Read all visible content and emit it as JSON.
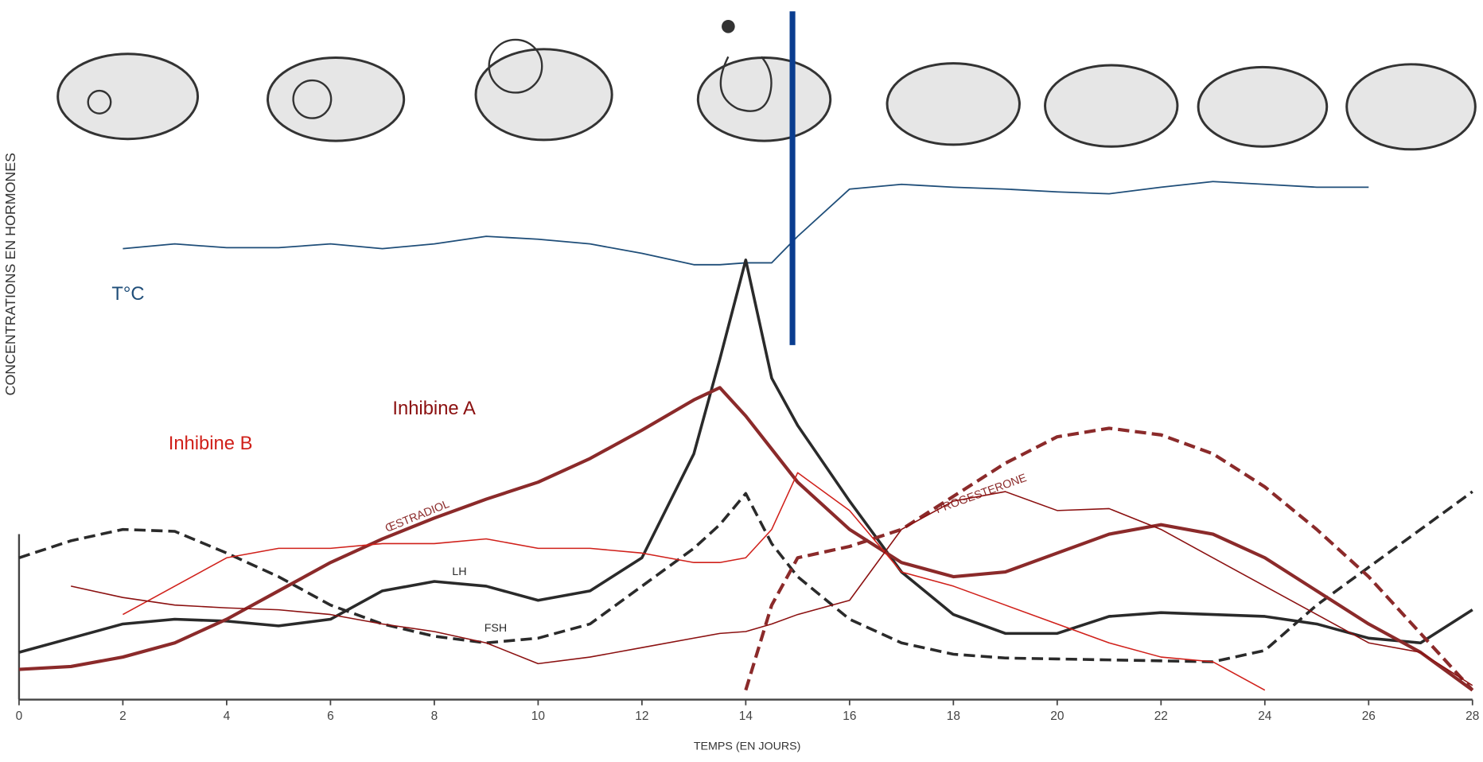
{
  "chart_data": {
    "type": "line",
    "y_label": "CONCENTRATIONS EN HORMONES",
    "x_label": "TEMPS (EN JOURS)",
    "x": [
      0,
      1,
      2,
      3,
      4,
      5,
      6,
      7,
      8,
      9,
      10,
      11,
      12,
      13,
      13.5,
      14,
      14.5,
      15,
      16,
      17,
      18,
      19,
      20,
      21,
      22,
      23,
      24,
      25,
      26,
      27,
      28
    ],
    "xlim": [
      0,
      28
    ],
    "xticks": [
      0,
      2,
      4,
      6,
      8,
      10,
      12,
      14,
      16,
      18,
      20,
      22,
      24,
      26,
      28
    ],
    "ylim": [
      0,
      120
    ],
    "vline": {
      "x": 14.9,
      "color": "#0a3d8f"
    },
    "series": [
      {
        "name": "T°C",
        "color": "#1f4e79",
        "dash": false,
        "width": 1.5,
        "values": [
          null,
          null,
          95.4,
          96.4,
          95.6,
          95.6,
          96.4,
          95.4,
          96.4,
          98,
          97.4,
          96.4,
          94.4,
          92,
          92,
          92.4,
          92.4,
          98,
          108,
          109,
          108.4,
          108,
          107.4,
          107,
          108.4,
          109.6,
          109,
          108.4,
          108.4,
          null,
          null
        ]
      },
      {
        "name": "LH",
        "color": "#2a2a2a",
        "dash": false,
        "width": 3,
        "values": [
          10,
          13,
          16,
          17,
          16.6,
          15.6,
          17,
          23,
          25,
          24,
          21,
          23,
          30,
          52,
          72,
          93,
          68,
          58,
          42,
          27,
          18,
          14,
          14,
          17.6,
          18.4,
          18,
          17.6,
          16,
          13,
          12,
          19
        ]
      },
      {
        "name": "FSH",
        "color": "#2a2a2a",
        "dash": true,
        "width": 3,
        "values": [
          30,
          33.6,
          36,
          35.6,
          31,
          26,
          20,
          16,
          13.4,
          12,
          13,
          16,
          24,
          32,
          37,
          43.6,
          33,
          26,
          17,
          12,
          9.6,
          8.8,
          8.6,
          8.4,
          8.2,
          8,
          10.4,
          20,
          28,
          36,
          44
        ]
      },
      {
        "name": "ŒSTRADIOL",
        "color": "#8b2a2a",
        "dash": false,
        "width": 3.5,
        "values": [
          6.4,
          7,
          9,
          12,
          17,
          23,
          29,
          34,
          38.4,
          42.4,
          46,
          51,
          57,
          63.4,
          66,
          60,
          53,
          46,
          36,
          29,
          26,
          27,
          31,
          35,
          37,
          35,
          30,
          23,
          16,
          10,
          2
        ]
      },
      {
        "name": "PROGESTERONE",
        "color": "#8b2a2a",
        "dash": true,
        "width": 3.5,
        "values": [
          null,
          null,
          null,
          null,
          null,
          null,
          null,
          null,
          null,
          null,
          null,
          null,
          null,
          null,
          null,
          2,
          20,
          30,
          32.4,
          36,
          43,
          50,
          55.6,
          57.4,
          56,
          52,
          45,
          36,
          26,
          14,
          2
        ]
      },
      {
        "name": "Inhibine B",
        "color": "#d0201a",
        "dash": false,
        "width": 1.3,
        "values": [
          null,
          null,
          18,
          24,
          30,
          32,
          32,
          33,
          33,
          34,
          32,
          32,
          31,
          29,
          29,
          30,
          36,
          48,
          40,
          27,
          24,
          20,
          16,
          12,
          9,
          8,
          2,
          null,
          null,
          null,
          null
        ]
      },
      {
        "name": "Inhibine A",
        "color": "#8b1010",
        "dash": false,
        "width": 1.3,
        "values": [
          null,
          24,
          21.6,
          20,
          19.4,
          19,
          18,
          16,
          14.4,
          12,
          7.6,
          9,
          11,
          13,
          14,
          14.4,
          16,
          18,
          21,
          36,
          42,
          44,
          40,
          40.4,
          36,
          30,
          24,
          18,
          12,
          10,
          3
        ]
      }
    ]
  }
}
